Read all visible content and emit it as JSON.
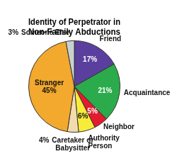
{
  "chart_data": {
    "type": "pie",
    "title": [
      "Identity of Perpetrator in",
      "Non-Family Abductions"
    ],
    "categories": [
      "Friend",
      "Acquaintance",
      "Neighbor",
      "Authority Person",
      "Caretaker or Babysitter",
      "Stranger",
      "Someone Else"
    ],
    "values": [
      17,
      21,
      5,
      6,
      4,
      45,
      3
    ],
    "value_labels": [
      "17%",
      "21%",
      "5%",
      "6%",
      "4%",
      "45%",
      "3%"
    ],
    "colors": [
      "#5b3f9e",
      "#2bab4b",
      "#e31b2f",
      "#f7ec3a",
      "#f2dcae",
      "#f2a92e",
      "#c9d1cf"
    ],
    "data_labels": true
  }
}
